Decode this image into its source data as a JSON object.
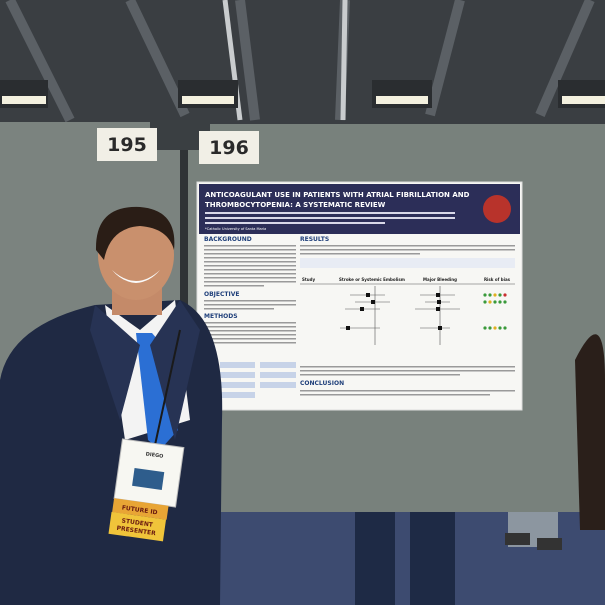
{
  "board_numbers": [
    "195",
    "196"
  ],
  "poster": {
    "title_lines": [
      "ANTICOAGULANT USE IN PATIENTS WITH ATRIAL FIBRILLATION AND",
      "THROMBOCYTOPENIA: A SYSTEMATIC REVIEW"
    ],
    "affiliation": "*Catholic University of Santa Maria",
    "sections": [
      "BACKGROUND",
      "OBJECTIVE",
      "METHODS",
      "RESULTS",
      "CONCLUSION"
    ],
    "table_headers": [
      "Study",
      "Stroke or Systemic Embolism",
      "Major Bleeding",
      "Risk of bias"
    ]
  },
  "badge": {
    "name": "DIEGO",
    "ribbons": [
      "FUTURE ID",
      "STUDENT",
      "PRESENTER"
    ]
  }
}
